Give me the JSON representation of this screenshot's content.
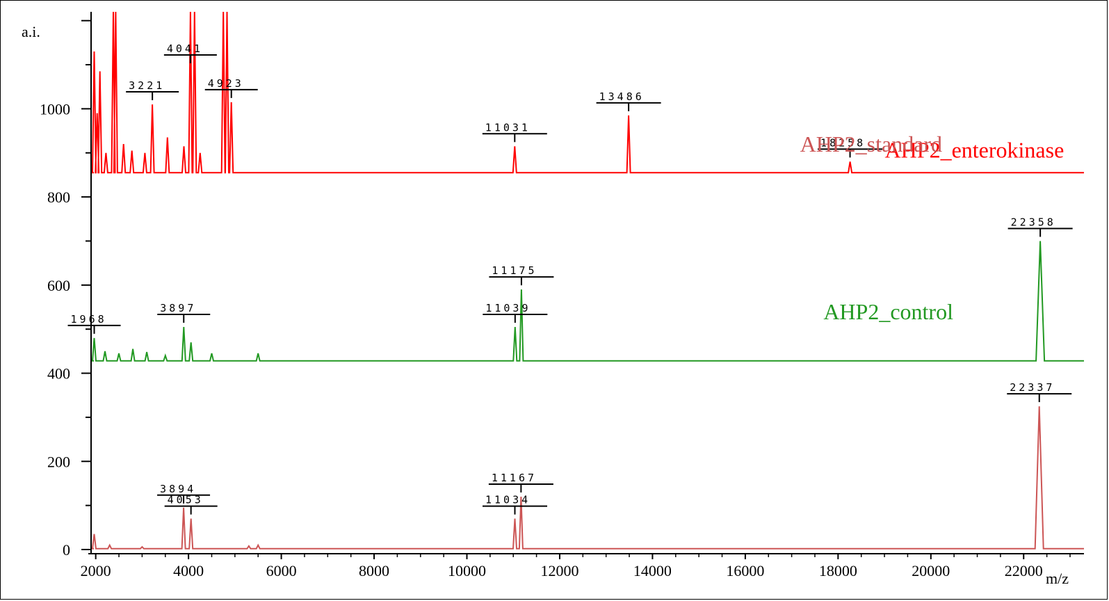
{
  "chart_data": {
    "type": "line",
    "title": "",
    "xlabel": "m/z",
    "ylabel": "a.i.",
    "xlim": [
      1900,
      23300
    ],
    "ylim": [
      0,
      1220
    ],
    "x_ticks": [
      2000,
      4000,
      6000,
      8000,
      10000,
      12000,
      14000,
      16000,
      18000,
      20000,
      22000
    ],
    "x_tick_labels": [
      "2000",
      "4000",
      "6000",
      "8000",
      "10000",
      "12000",
      "14000",
      "16000",
      "18000",
      "20000",
      "22000"
    ],
    "y_ticks": [
      0,
      200,
      400,
      600,
      800,
      1000
    ],
    "y_tick_labels": [
      "0",
      "200",
      "400",
      "600",
      "800",
      "1000"
    ],
    "grid": false,
    "series": [
      {
        "name": "AHP2_enterokinase",
        "color": "#ff0000",
        "baseline": 855,
        "peaks": [
          {
            "x": 1968,
            "y": 1130
          },
          {
            "x": 2030,
            "y": 990
          },
          {
            "x": 2090,
            "y": 1085
          },
          {
            "x": 2220,
            "y": 900
          },
          {
            "x": 2380,
            "y": 1220
          },
          {
            "x": 2430,
            "y": 1220
          },
          {
            "x": 2600,
            "y": 920
          },
          {
            "x": 2780,
            "y": 905
          },
          {
            "x": 3060,
            "y": 900
          },
          {
            "x": 3221,
            "y": 1010
          },
          {
            "x": 3545,
            "y": 935
          },
          {
            "x": 3900,
            "y": 915
          },
          {
            "x": 4041,
            "y": 1220
          },
          {
            "x": 4130,
            "y": 1220
          },
          {
            "x": 4250,
            "y": 900
          },
          {
            "x": 4750,
            "y": 1220
          },
          {
            "x": 4830,
            "y": 1220
          },
          {
            "x": 4923,
            "y": 1015
          },
          {
            "x": 11031,
            "y": 915
          },
          {
            "x": 13486,
            "y": 985
          },
          {
            "x": 18258,
            "y": 880
          }
        ],
        "labels": [
          {
            "text": "3221",
            "x": 3221,
            "y": 1010
          },
          {
            "text": "4041",
            "x": 4041,
            "y": 1220
          },
          {
            "text": "4923",
            "x": 4923,
            "y": 1015
          },
          {
            "text": "11031",
            "x": 11031,
            "y": 915
          },
          {
            "text": "13486",
            "x": 13486,
            "y": 985
          },
          {
            "text": "18258",
            "x": 18258,
            "y": 880
          }
        ]
      },
      {
        "name": "AHP2_control",
        "color": "#229922",
        "baseline": 428,
        "peaks": [
          {
            "x": 1968,
            "y": 480
          },
          {
            "x": 2200,
            "y": 450
          },
          {
            "x": 2500,
            "y": 445
          },
          {
            "x": 2800,
            "y": 455
          },
          {
            "x": 3100,
            "y": 448
          },
          {
            "x": 3500,
            "y": 440
          },
          {
            "x": 3897,
            "y": 505
          },
          {
            "x": 4053,
            "y": 470
          },
          {
            "x": 4500,
            "y": 445
          },
          {
            "x": 5500,
            "y": 445
          },
          {
            "x": 11039,
            "y": 505
          },
          {
            "x": 11175,
            "y": 590
          },
          {
            "x": 22358,
            "y": 700
          }
        ],
        "labels": [
          {
            "text": "1968",
            "x": 1968,
            "y": 480
          },
          {
            "text": "3897",
            "x": 3897,
            "y": 505
          },
          {
            "text": "11039",
            "x": 11039,
            "y": 505
          },
          {
            "text": "11175",
            "x": 11175,
            "y": 590
          },
          {
            "text": "22358",
            "x": 22358,
            "y": 700
          }
        ]
      },
      {
        "name": "AHP2_standard",
        "color": "#cc5555",
        "baseline": 2,
        "peaks": [
          {
            "x": 1968,
            "y": 35
          },
          {
            "x": 2300,
            "y": 10
          },
          {
            "x": 3000,
            "y": 6
          },
          {
            "x": 3894,
            "y": 95
          },
          {
            "x": 4053,
            "y": 70
          },
          {
            "x": 5300,
            "y": 8
          },
          {
            "x": 5500,
            "y": 10
          },
          {
            "x": 11034,
            "y": 70
          },
          {
            "x": 11167,
            "y": 120
          },
          {
            "x": 22337,
            "y": 325
          }
        ],
        "labels": [
          {
            "text": "3894",
            "x": 3894,
            "y": 95
          },
          {
            "text": "4053",
            "x": 4053,
            "y": 70
          },
          {
            "text": "11034",
            "x": 11034,
            "y": 70
          },
          {
            "text": "11167",
            "x": 11167,
            "y": 120
          },
          {
            "text": "22337",
            "x": 22337,
            "y": 325
          }
        ]
      }
    ]
  }
}
